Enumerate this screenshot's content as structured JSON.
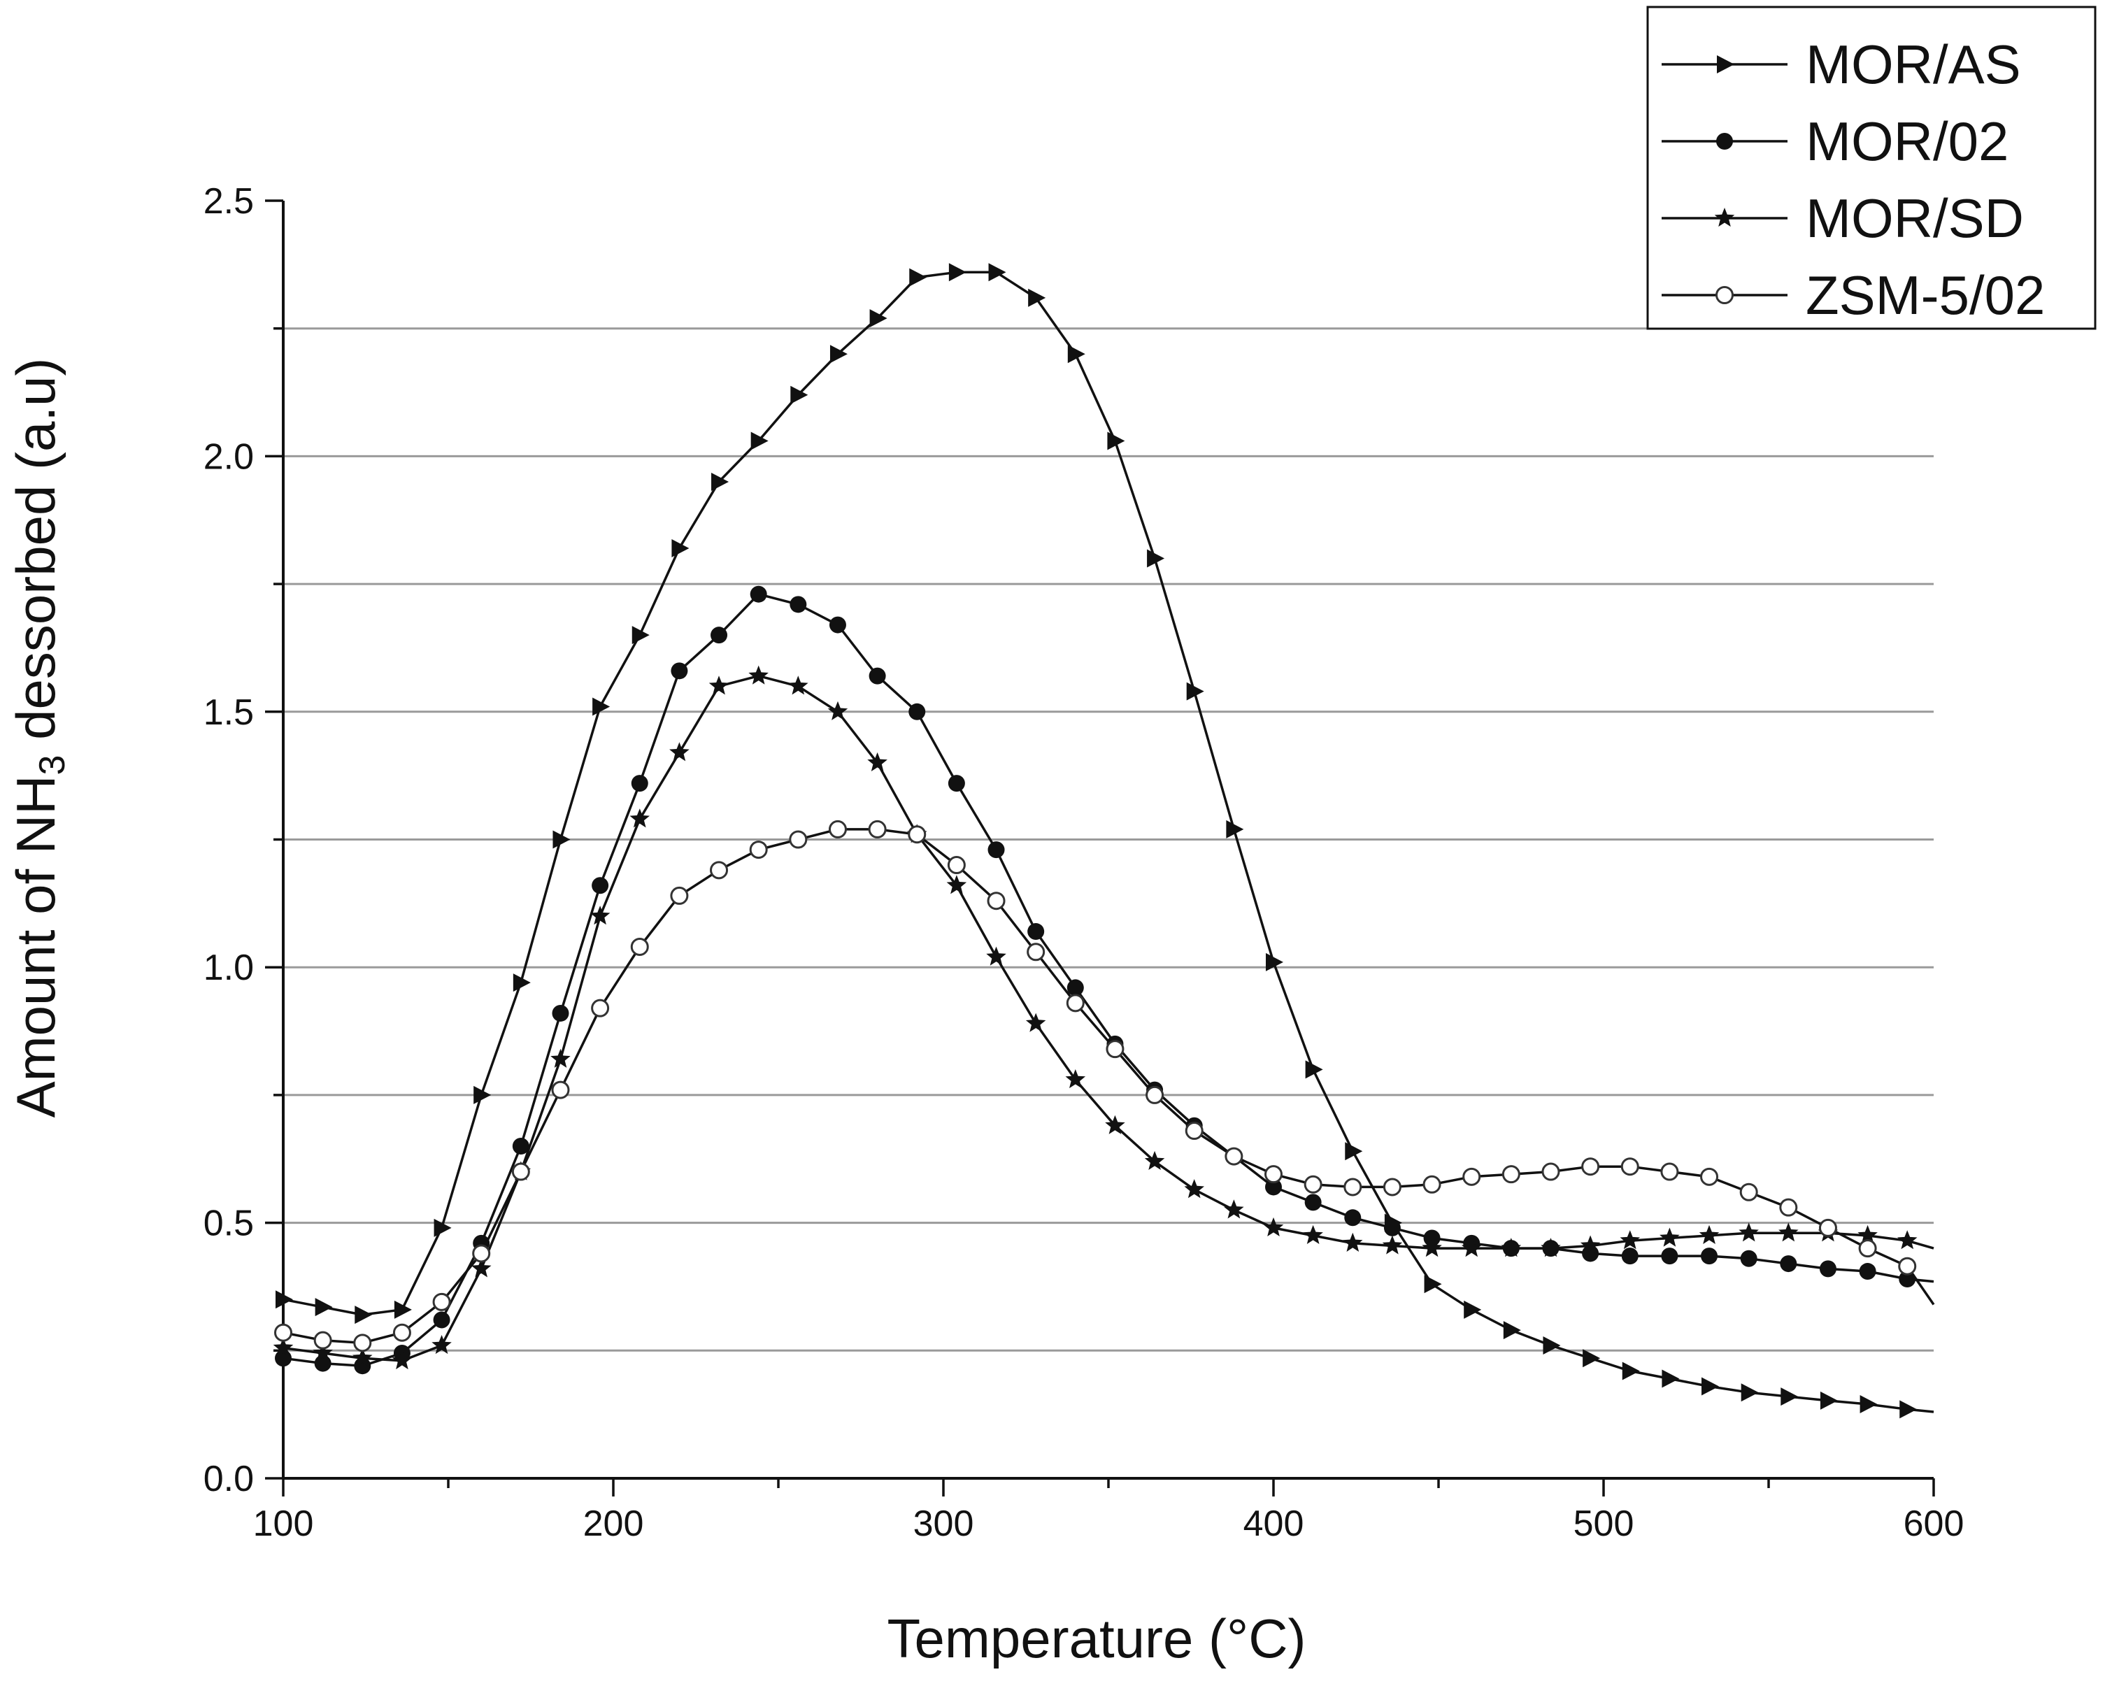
{
  "chart_data": {
    "type": "line",
    "title": "",
    "xlabel": "Temperature (°C)",
    "ylabel": {
      "before": "Amount of NH",
      "sub": "3",
      "after": " dessorbed (a.u)"
    },
    "xlim": [
      100,
      600
    ],
    "ylim": [
      0,
      2.5
    ],
    "xticks": [
      100,
      200,
      300,
      400,
      500,
      600
    ],
    "xtick_labels": [
      "100",
      "200",
      "300",
      "400",
      "500",
      "600"
    ],
    "yticks": [
      0,
      0.5,
      1,
      1.5,
      2,
      2.5
    ],
    "ytick_labels": [
      "0.0",
      "0.5",
      "1.0",
      "1.5",
      "2.0",
      "2.5"
    ],
    "gridlines_y": [
      0.25,
      0.5,
      0.75,
      1,
      1.25,
      1.5,
      1.75,
      2,
      2.25
    ],
    "legend_position": "top-right",
    "series": [
      {
        "name": "MOR/AS",
        "marker": "triangle-right",
        "x": [
          100,
          112,
          124,
          136,
          148,
          160,
          172,
          184,
          196,
          208,
          220,
          232,
          244,
          256,
          268,
          280,
          292,
          304,
          316,
          328,
          340,
          352,
          364,
          376,
          388,
          400,
          412,
          424,
          436,
          448,
          460,
          472,
          484,
          496,
          508,
          520,
          532,
          544,
          556,
          568,
          580,
          592,
          600
        ],
        "y": [
          0.35,
          0.335,
          0.32,
          0.33,
          0.49,
          0.75,
          0.97,
          1.25,
          1.51,
          1.65,
          1.82,
          1.95,
          2.03,
          2.12,
          2.2,
          2.27,
          2.35,
          2.36,
          2.36,
          2.31,
          2.2,
          2.03,
          1.8,
          1.54,
          1.27,
          1.01,
          0.8,
          0.64,
          0.5,
          0.38,
          0.33,
          0.29,
          0.26,
          0.235,
          0.21,
          0.195,
          0.18,
          0.168,
          0.16,
          0.152,
          0.145,
          0.135,
          0.13
        ]
      },
      {
        "name": "MOR/02",
        "marker": "circle-filled",
        "x": [
          100,
          112,
          124,
          136,
          148,
          160,
          172,
          184,
          196,
          208,
          220,
          232,
          244,
          256,
          268,
          280,
          292,
          304,
          316,
          328,
          340,
          352,
          364,
          376,
          388,
          400,
          412,
          424,
          436,
          448,
          460,
          472,
          484,
          496,
          508,
          520,
          532,
          544,
          556,
          568,
          580,
          592,
          600
        ],
        "y": [
          0.235,
          0.225,
          0.22,
          0.245,
          0.31,
          0.46,
          0.65,
          0.91,
          1.16,
          1.36,
          1.58,
          1.65,
          1.73,
          1.71,
          1.67,
          1.57,
          1.5,
          1.36,
          1.23,
          1.07,
          0.96,
          0.85,
          0.76,
          0.69,
          0.63,
          0.57,
          0.54,
          0.51,
          0.49,
          0.47,
          0.46,
          0.45,
          0.45,
          0.44,
          0.435,
          0.435,
          0.435,
          0.43,
          0.42,
          0.41,
          0.405,
          0.39,
          0.385
        ]
      },
      {
        "name": "MOR/SD",
        "marker": "star",
        "x": [
          100,
          112,
          124,
          136,
          148,
          160,
          172,
          184,
          196,
          208,
          220,
          232,
          244,
          256,
          268,
          280,
          292,
          304,
          316,
          328,
          340,
          352,
          364,
          376,
          388,
          400,
          412,
          424,
          436,
          448,
          460,
          472,
          484,
          496,
          508,
          520,
          532,
          544,
          556,
          568,
          580,
          592,
          600
        ],
        "y": [
          0.255,
          0.245,
          0.235,
          0.23,
          0.26,
          0.41,
          0.6,
          0.82,
          1.1,
          1.29,
          1.42,
          1.55,
          1.57,
          1.55,
          1.5,
          1.4,
          1.26,
          1.16,
          1.02,
          0.89,
          0.78,
          0.69,
          0.62,
          0.565,
          0.525,
          0.49,
          0.475,
          0.46,
          0.455,
          0.45,
          0.45,
          0.45,
          0.45,
          0.455,
          0.465,
          0.47,
          0.475,
          0.48,
          0.48,
          0.48,
          0.475,
          0.465,
          0.45
        ]
      },
      {
        "name": "ZSM-5/02",
        "marker": "circle-open",
        "x": [
          100,
          112,
          124,
          136,
          148,
          160,
          172,
          184,
          196,
          208,
          220,
          232,
          244,
          256,
          268,
          280,
          292,
          304,
          316,
          328,
          340,
          352,
          364,
          376,
          388,
          400,
          412,
          424,
          436,
          448,
          460,
          472,
          484,
          496,
          508,
          520,
          532,
          544,
          556,
          568,
          580,
          592,
          600
        ],
        "y": [
          0.285,
          0.27,
          0.265,
          0.285,
          0.345,
          0.44,
          0.6,
          0.76,
          0.92,
          1.04,
          1.14,
          1.19,
          1.23,
          1.25,
          1.27,
          1.27,
          1.26,
          1.2,
          1.13,
          1.03,
          0.93,
          0.84,
          0.75,
          0.68,
          0.63,
          0.595,
          0.575,
          0.57,
          0.57,
          0.575,
          0.59,
          0.595,
          0.6,
          0.61,
          0.61,
          0.6,
          0.59,
          0.56,
          0.53,
          0.49,
          0.45,
          0.415,
          0.34
        ]
      }
    ]
  }
}
